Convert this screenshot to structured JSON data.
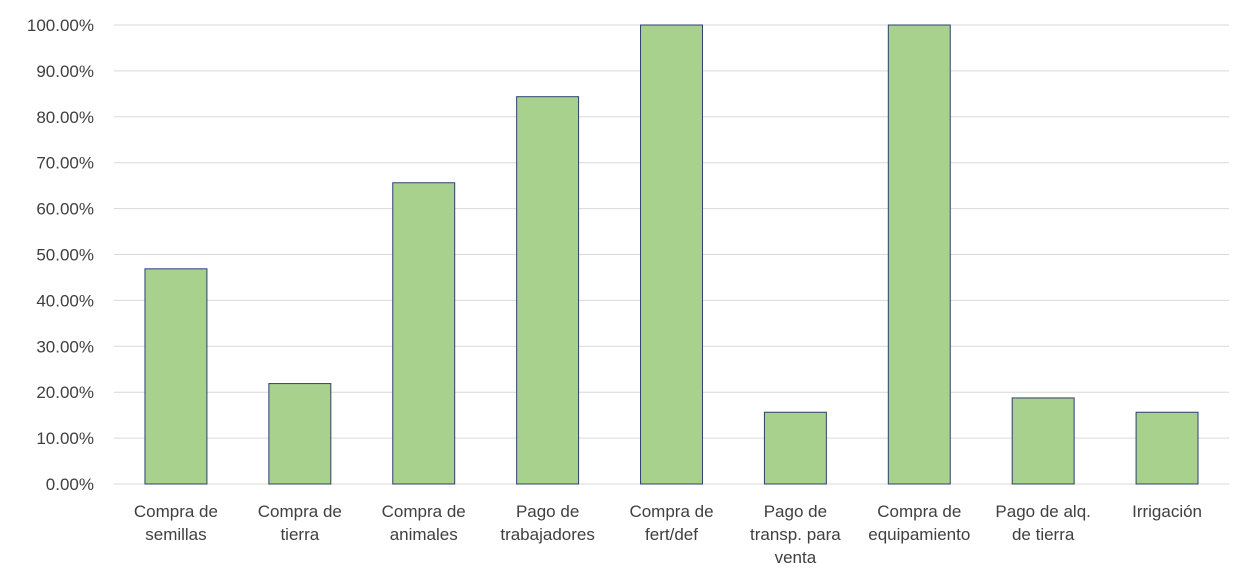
{
  "chart_data": {
    "type": "bar",
    "title": "",
    "xlabel": "",
    "ylabel": "",
    "categories": [
      "Compra de semillas",
      "Compra de tierra",
      "Compra de animales",
      "Pago de trabajadores",
      "Compra de fert/def",
      "Pago de transp. para venta",
      "Compra de equipamiento",
      "Pago de alq. de tierra",
      "Irrigación"
    ],
    "category_label_lines": [
      [
        "Compra de",
        "semillas"
      ],
      [
        "Compra de",
        "tierra"
      ],
      [
        "Compra de",
        "animales"
      ],
      [
        "Pago de",
        "trabajadores"
      ],
      [
        "Compra de",
        "fert/def"
      ],
      [
        "Pago de",
        "transp. para",
        "venta"
      ],
      [
        "Compra de",
        "equipamiento"
      ],
      [
        "Pago de alq.",
        "de tierra"
      ],
      [
        "Irrigación"
      ]
    ],
    "values": [
      46.88,
      21.88,
      65.63,
      84.38,
      100.0,
      15.63,
      100.0,
      18.75,
      15.63
    ],
    "ylim": [
      0,
      100
    ],
    "yticks": [
      0,
      10,
      20,
      30,
      40,
      50,
      60,
      70,
      80,
      90,
      100
    ],
    "ytick_labels": [
      "0.00%",
      "10.00%",
      "20.00%",
      "30.00%",
      "40.00%",
      "50.00%",
      "60.00%",
      "70.00%",
      "80.00%",
      "90.00%",
      "100.00%"
    ],
    "grid": true,
    "legend": "none",
    "colors": {
      "bar_fill": "#a9d18e",
      "bar_stroke": "#2f3f6f",
      "grid": "#d9d9d9",
      "text": "#404040"
    }
  }
}
